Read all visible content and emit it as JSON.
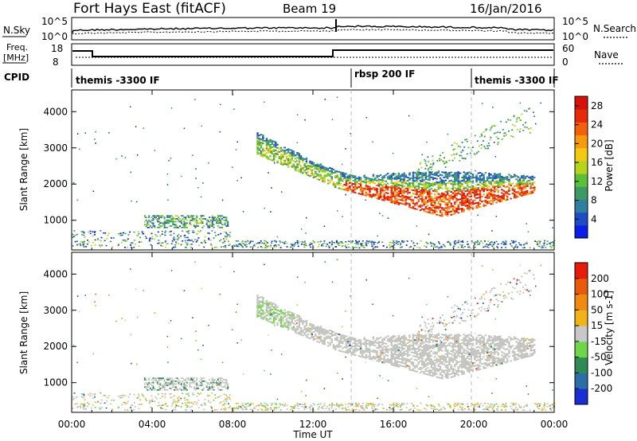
{
  "header": {
    "station": "Fort Hays East (fitACF)",
    "beam": "Beam 19",
    "date": "16/Jan/2016"
  },
  "noise_panel": {
    "left_label": "N.Sky",
    "left_top": "10^5",
    "left_bottom": "10^0",
    "right_top": "10^5",
    "right_bottom": "10^0",
    "right_label": "N.Search"
  },
  "freq_panel": {
    "left_label_1": "Freq.",
    "left_label_2": "[MHz]",
    "left_top": "18",
    "left_bottom": "8",
    "right_top": "60",
    "right_bottom": "0",
    "right_label": "Nave"
  },
  "cpid": {
    "label": "CPID",
    "segments": [
      "themis -3300 IF",
      "rbsp 200 IF",
      "themis -3300 IF"
    ]
  },
  "chart_data": [
    {
      "type": "heatmap",
      "title": "",
      "xlabel": "",
      "ylabel": "Slant Range [km]",
      "x_ticks": [
        "00:00",
        "04:00",
        "08:00",
        "12:00",
        "16:00",
        "20:00",
        "00:00"
      ],
      "y_ticks": [
        "1000",
        "2000",
        "3000",
        "4000"
      ],
      "ylim": [
        180,
        4600
      ],
      "xlim_hours": [
        0,
        24
      ],
      "colorbar": {
        "label": "Power [dB]",
        "ticks": [
          "4",
          "8",
          "12",
          "16",
          "20",
          "24",
          "28"
        ],
        "range": [
          0,
          30
        ],
        "colors": [
          "#0a1ee8",
          "#1f4cc4",
          "#2f7fa0",
          "#3d9a66",
          "#5bbf3a",
          "#b8d31c",
          "#f3c812",
          "#f79a0e",
          "#f2600c",
          "#e52b0a",
          "#d81208"
        ]
      }
    },
    {
      "type": "heatmap",
      "title": "",
      "xlabel": "Time UT",
      "ylabel": "Slant Range [km]",
      "x_ticks": [
        "00:00",
        "04:00",
        "08:00",
        "12:00",
        "16:00",
        "20:00",
        "00:00"
      ],
      "y_ticks": [
        "1000",
        "2000",
        "3000",
        "4000"
      ],
      "ylim": [
        180,
        4600
      ],
      "xlim_hours": [
        0,
        24
      ],
      "colorbar": {
        "label": "Velocity [m s-1]",
        "ticks": [
          "200",
          "100",
          "50",
          "15",
          "-15",
          "-50",
          "-100",
          "-200"
        ],
        "colors": [
          "#1a2ed4",
          "#2c6fa8",
          "#2f8a55",
          "#6fd64a",
          "#c8c8c8",
          "#f0b418",
          "#f08a10",
          "#e85a0c",
          "#e81a0a"
        ]
      }
    }
  ],
  "colors": {
    "scatter_gray": "#c3c3bd",
    "rbsp_dash": "#bbbbbb"
  }
}
